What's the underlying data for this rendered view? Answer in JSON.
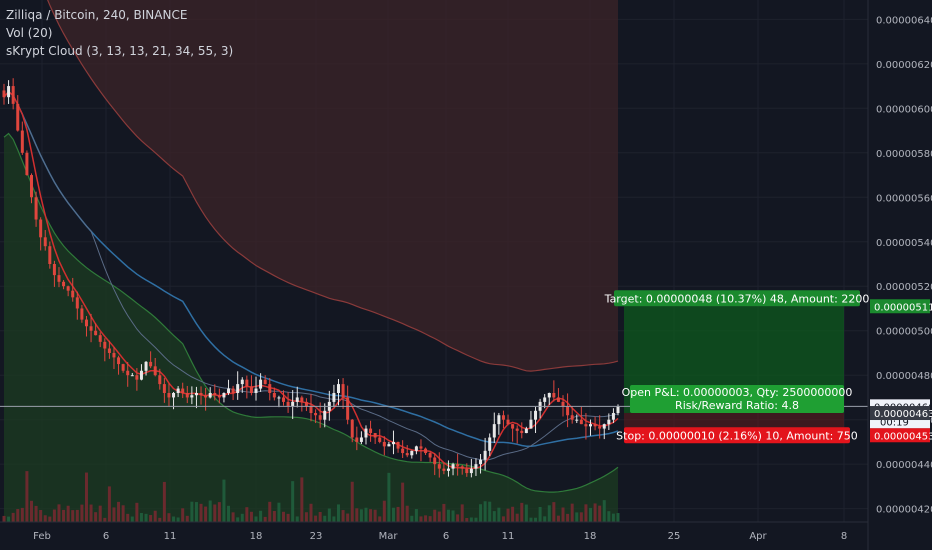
{
  "legend": {
    "title": "Zilliqa / Bitcoin, 240, BINANCE",
    "vol": "Vol (20)",
    "cloud": "sKrypt Cloud (3, 13, 13, 21, 34, 55, 3)"
  },
  "colors": {
    "background": "#131722",
    "grid": "#1e222d",
    "up": "#e8e8e8",
    "down": "#e0463e",
    "ma_red": "#d12f2f",
    "ma_blue": "#2f6fa3",
    "cloud_red": "#3a2328",
    "cloud_green": "#1c3a22",
    "target_fill": "#0d5a1e",
    "target_label": "#1b8a2e",
    "stop_label": "#e3141c",
    "pnl_label": "#1f9f33"
  },
  "chart_data": {
    "type": "candlestick",
    "yticks": [
      "0.00000640",
      "0.00000620",
      "0.00000600",
      "0.00000580",
      "0.00000560",
      "0.00000540",
      "0.00000520",
      "0.00000500",
      "0.00000480",
      "0.00000460",
      "0.00000440",
      "0.00000420"
    ],
    "ylim": [
      4.14e-06,
      6.46e-06
    ],
    "xticks": [
      "Feb",
      "6",
      "11",
      "18",
      "23",
      "Mar",
      "6",
      "11",
      "18",
      "25",
      "Apr",
      "8"
    ],
    "price_labels": {
      "target": "0.00000511",
      "current": "0.00000466",
      "countdown": "00:19",
      "entry": "0.00000463",
      "stop": "0.00000453"
    },
    "position": {
      "target_text": "Target: 0.00000048 (10.37%) 48, Amount: 2200",
      "pnl_text": "Open P&L: 0.00000003, Qty: 2500000000",
      "rr_text": "Risk/Reward Ratio: 4.8",
      "stop_text": "Stop: 0.00000010 (2.16%) 10, Amount: 750",
      "entry_price": 4.63e-06,
      "target_price": 5.11e-06,
      "stop_price": 4.53e-06
    },
    "close": [
      6.05,
      6.1,
      6.02,
      5.9,
      5.8,
      5.7,
      5.6,
      5.5,
      5.42,
      5.38,
      5.3,
      5.25,
      5.22,
      5.2,
      5.18,
      5.15,
      5.1,
      5.05,
      5.02,
      5.0,
      4.98,
      4.95,
      4.92,
      4.9,
      4.88,
      4.85,
      4.82,
      4.8,
      4.8,
      4.78,
      4.82,
      4.86,
      4.84,
      4.8,
      4.76,
      4.72,
      4.7,
      4.72,
      4.74,
      4.72,
      4.7,
      4.71,
      4.72,
      4.71,
      4.7,
      4.72,
      4.71,
      4.7,
      4.72,
      4.74,
      4.72,
      4.76,
      4.78,
      4.75,
      4.72,
      4.74,
      4.78,
      4.76,
      4.72,
      4.7,
      4.7,
      4.68,
      4.66,
      4.68,
      4.7,
      4.68,
      4.66,
      4.63,
      4.62,
      4.6,
      4.64,
      4.68,
      4.72,
      4.76,
      4.7,
      4.6,
      4.52,
      4.5,
      4.52,
      4.56,
      4.54,
      4.52,
      4.5,
      4.48,
      4.49,
      4.5,
      4.47,
      4.45,
      4.44,
      4.46,
      4.48,
      4.47,
      4.45,
      4.43,
      4.4,
      4.38,
      4.37,
      4.38,
      4.4,
      4.39,
      4.38,
      4.36,
      4.38,
      4.4,
      4.42,
      4.46,
      4.52,
      4.58,
      4.62,
      4.6,
      4.58,
      4.56,
      4.55,
      4.54,
      4.56,
      4.6,
      4.64,
      4.68,
      4.7,
      4.72,
      4.7,
      4.68,
      4.66,
      4.62,
      4.6,
      4.6,
      4.58,
      4.57,
      4.58,
      4.57,
      4.56,
      4.58,
      4.6,
      4.63,
      4.66
    ]
  }
}
